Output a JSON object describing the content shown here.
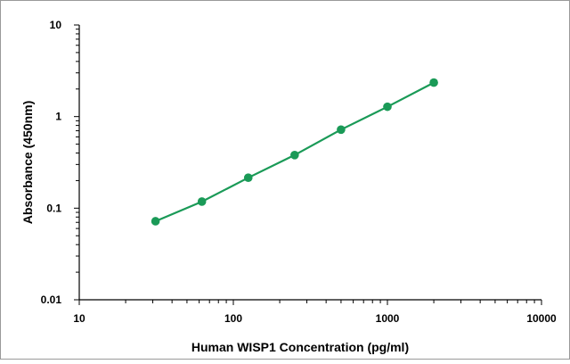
{
  "chart_data": {
    "type": "line",
    "xlabel": "Human WISP1  Concentration (pg/ml)",
    "ylabel": "Absorbance (450nm)",
    "x_scale": "log",
    "y_scale": "log",
    "xlim": [
      10,
      10000
    ],
    "ylim": [
      0.01,
      10
    ],
    "x_ticks": [
      "10",
      "100",
      "1000",
      "10000"
    ],
    "y_ticks": [
      "0.01",
      "0.1",
      "1",
      "10"
    ],
    "grid": false,
    "series": [
      {
        "color": "#1a9a57",
        "x": [
          31.25,
          62.5,
          125,
          250,
          500,
          1000,
          2000
        ],
        "y": [
          0.072,
          0.118,
          0.215,
          0.38,
          0.72,
          1.28,
          2.35
        ]
      }
    ]
  }
}
